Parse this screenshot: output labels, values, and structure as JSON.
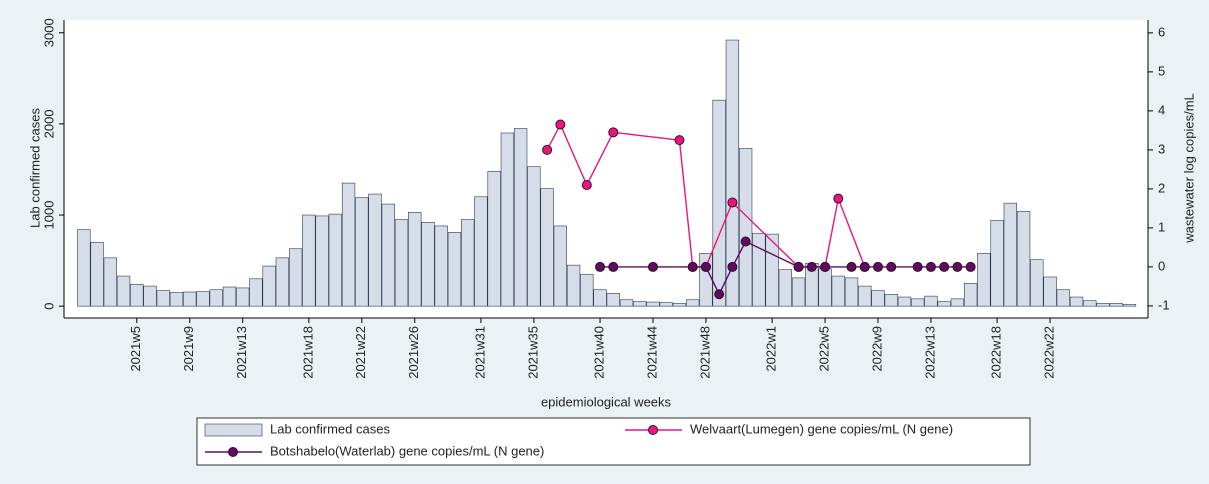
{
  "chart_data": {
    "type": "bar",
    "ylabel": "Lab confirmed cases",
    "y2label": "wastewater log copies/mL",
    "xlabel": "epidemiological weeks",
    "xlim": [
      -1.5,
      80.4
    ],
    "xticks": [
      {
        "value": 4,
        "label": "2021w5"
      },
      {
        "value": 8,
        "label": "2021w9"
      },
      {
        "value": 12,
        "label": "2021w13"
      },
      {
        "value": 17,
        "label": "2021w18"
      },
      {
        "value": 21,
        "label": "2021w22"
      },
      {
        "value": 25,
        "label": "2021w26"
      },
      {
        "value": 30,
        "label": "2021w31"
      },
      {
        "value": 34,
        "label": "2021w35"
      },
      {
        "value": 39,
        "label": "2021w40"
      },
      {
        "value": 43,
        "label": "2021w44"
      },
      {
        "value": 47,
        "label": "2021w48"
      },
      {
        "value": 52,
        "label": "2022w1"
      },
      {
        "value": 56,
        "label": "2022w5"
      },
      {
        "value": 60,
        "label": "2022w9"
      },
      {
        "value": 64,
        "label": "2022w13"
      },
      {
        "value": 69,
        "label": "2022w18"
      },
      {
        "value": 73,
        "label": "2022w22"
      }
    ],
    "ylim": [
      -130,
      3140
    ],
    "yticks": [
      0,
      1000,
      2000,
      3000
    ],
    "y2lim": [
      -1.31,
      6.33
    ],
    "y2ticks": [
      -1,
      0,
      1,
      2,
      3,
      4,
      5,
      6
    ],
    "series": [
      {
        "name": "Lab confirmed cases",
        "type": "bar",
        "color": "#d7dde8",
        "x": [
          0,
          1,
          2,
          3,
          4,
          5,
          6,
          7,
          8,
          9,
          10,
          11,
          12,
          13,
          14,
          15,
          16,
          17,
          18,
          19,
          20,
          21,
          22,
          23,
          24,
          25,
          26,
          27,
          28,
          29,
          30,
          31,
          32,
          33,
          34,
          35,
          36,
          37,
          38,
          39,
          40,
          41,
          42,
          43,
          44,
          45,
          46,
          47,
          48,
          49,
          50,
          51,
          52,
          53,
          54,
          55,
          56,
          57,
          58,
          59,
          60,
          61,
          62,
          63,
          64,
          65,
          66,
          67,
          68,
          69,
          70,
          71,
          72,
          73,
          74,
          75,
          76,
          77,
          78,
          79
        ],
        "values": [
          840,
          700,
          530,
          330,
          240,
          220,
          170,
          150,
          155,
          160,
          180,
          210,
          200,
          300,
          440,
          530,
          630,
          1000,
          990,
          1010,
          1350,
          1190,
          1230,
          1120,
          950,
          1030,
          920,
          880,
          810,
          950,
          1200,
          1480,
          1900,
          1950,
          1530,
          1290,
          880,
          450,
          350,
          180,
          140,
          70,
          50,
          45,
          40,
          30,
          70,
          580,
          2260,
          2920,
          1730,
          800,
          790,
          400,
          310,
          470,
          410,
          330,
          310,
          220,
          170,
          130,
          100,
          80,
          110,
          50,
          80,
          250,
          580,
          940,
          1130,
          1040,
          510,
          320,
          180,
          100,
          60,
          30,
          30,
          20
        ]
      },
      {
        "name": "Welvaart(Lumegen) gene copies/mL (N gene)",
        "type": "line",
        "axis": "y2",
        "color": "#e8177d",
        "x": [
          35,
          36,
          38,
          40,
          45,
          46,
          47,
          49,
          54,
          56,
          57,
          59
        ],
        "values": [
          3.0,
          3.65,
          2.1,
          3.45,
          3.25,
          0,
          0,
          1.65,
          0,
          0,
          1.75,
          0
        ]
      },
      {
        "name": "Botshabelo(Waterlab) gene copies/mL (N gene)",
        "type": "line",
        "axis": "y2",
        "color": "#5c0d5e",
        "x": [
          39,
          40,
          43,
          46,
          47,
          48,
          49,
          50,
          54,
          55,
          56,
          58,
          59,
          60,
          61,
          63,
          64,
          65,
          66,
          67
        ],
        "values": [
          0,
          0,
          0,
          0,
          0,
          -0.7,
          0,
          0.65,
          0,
          0,
          0,
          0,
          0,
          0,
          0,
          0,
          0,
          0,
          0,
          0
        ]
      }
    ]
  }
}
